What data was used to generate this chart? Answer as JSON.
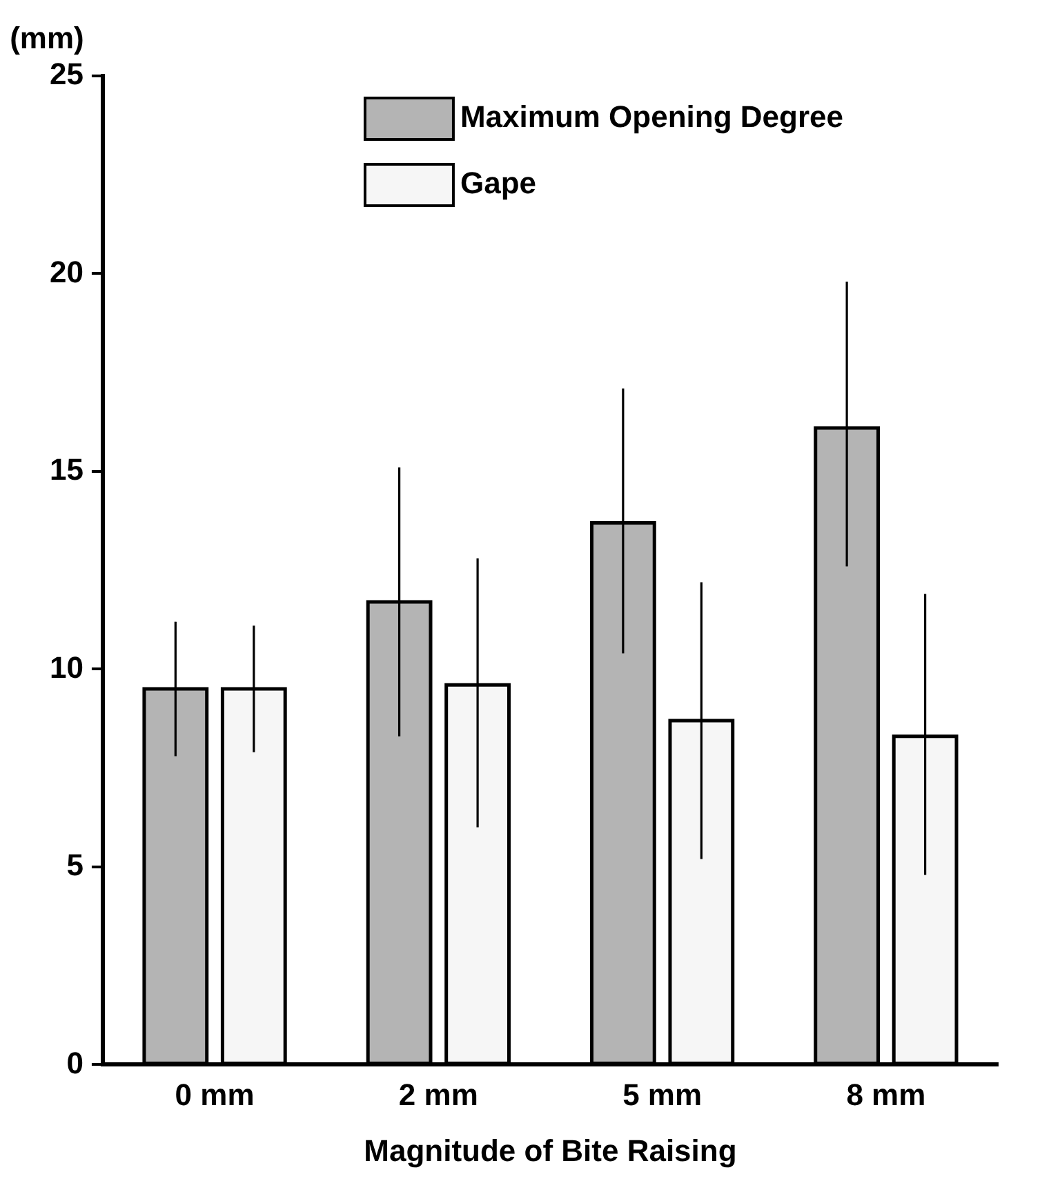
{
  "chart_data": {
    "type": "bar",
    "xlabel": "Magnitude of Bite Raising",
    "ylabel": "(mm)",
    "categories": [
      "0 mm",
      "2 mm",
      "5 mm",
      "8 mm"
    ],
    "series": [
      {
        "name": "Maximum Opening Degree",
        "color": "#b4b4b4",
        "values": [
          9.5,
          11.7,
          13.7,
          16.1
        ],
        "errors": [
          [
            7.8,
            11.2
          ],
          [
            8.3,
            15.1
          ],
          [
            10.4,
            17.1
          ],
          [
            12.6,
            19.8
          ]
        ]
      },
      {
        "name": "Gape",
        "color": "#f6f6f6",
        "values": [
          9.5,
          9.6,
          8.7,
          8.3
        ],
        "errors": [
          [
            7.9,
            11.1
          ],
          [
            6.0,
            12.8
          ],
          [
            5.2,
            12.2
          ],
          [
            4.8,
            11.9
          ]
        ]
      }
    ],
    "ylim": [
      0,
      25
    ],
    "yticks": [
      0,
      5,
      10,
      15,
      20,
      25
    ],
    "grid": false,
    "legend": "top right"
  }
}
